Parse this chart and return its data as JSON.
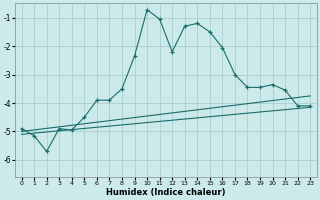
{
  "xlabel": "Humidex (Indice chaleur)",
  "bg_color": "#cceaea",
  "line_color": "#1a6b6b",
  "grid_color": "#aacece",
  "xlim": [
    -0.5,
    23.5
  ],
  "ylim": [
    -6.6,
    -0.5
  ],
  "yticks": [
    -6,
    -5,
    -4,
    -3,
    -2,
    -1
  ],
  "xticks": [
    0,
    1,
    2,
    3,
    4,
    5,
    6,
    7,
    8,
    9,
    10,
    11,
    12,
    13,
    14,
    15,
    16,
    17,
    18,
    19,
    20,
    21,
    22,
    23
  ],
  "curve_x": [
    0,
    1,
    2,
    3,
    4,
    5,
    6,
    7,
    8,
    9,
    10,
    11,
    12,
    13,
    14,
    15,
    16,
    17,
    18,
    19,
    20,
    21,
    22,
    23
  ],
  "curve_y": [
    -4.9,
    -5.15,
    -5.7,
    -4.9,
    -4.95,
    -4.5,
    -3.9,
    -3.9,
    -3.5,
    -2.35,
    -0.72,
    -1.05,
    -2.2,
    -1.3,
    -1.2,
    -1.5,
    -2.05,
    -3.0,
    -3.45,
    -3.45,
    -3.35,
    -3.55,
    -4.1,
    -4.1
  ],
  "line1_x": [
    0,
    23
  ],
  "line1_y": [
    -5.0,
    -3.75
  ],
  "line2_x": [
    0,
    23
  ],
  "line2_y": [
    -5.1,
    -4.15
  ]
}
